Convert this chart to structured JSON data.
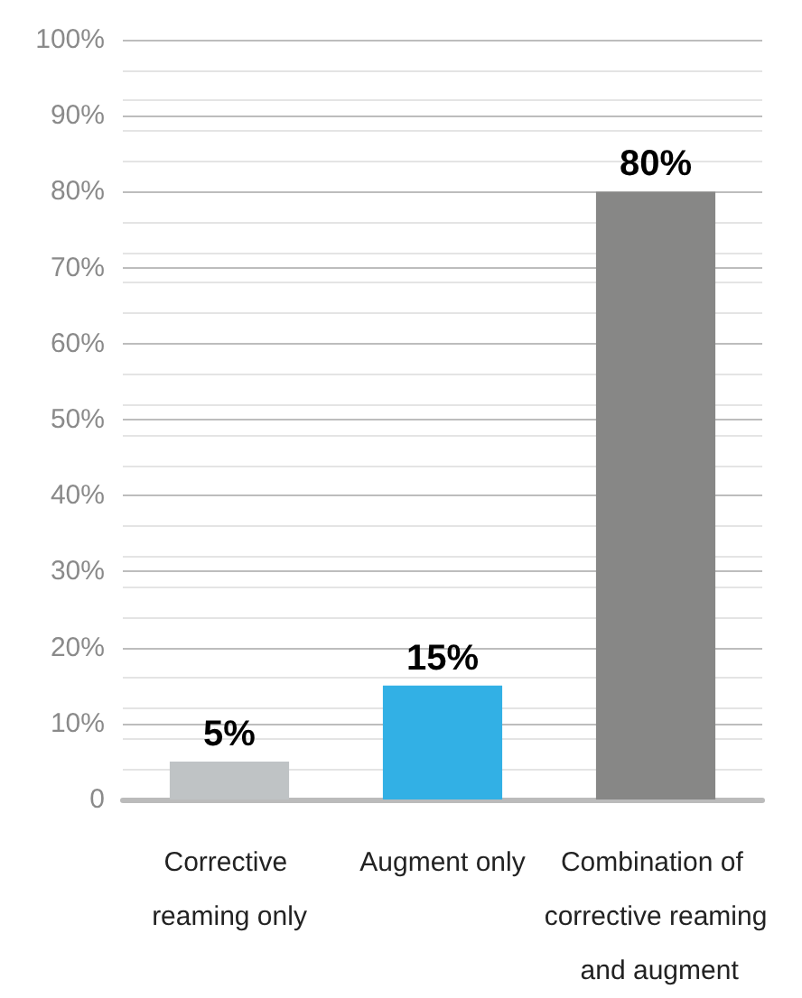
{
  "chart_data": {
    "type": "bar",
    "categories": [
      "Corrective reaming only",
      "Augment only",
      "Combination of corrective reaming and augment"
    ],
    "values": [
      5,
      15,
      80
    ],
    "colors": [
      "#bfc3c5",
      "#32b0e5",
      "#878786"
    ],
    "value_labels": [
      "5%",
      "15%",
      "80%"
    ],
    "ylim": [
      0,
      100
    ],
    "yticks": [
      {
        "value": 0,
        "label": "0"
      },
      {
        "value": 10,
        "label": "10%"
      },
      {
        "value": 20,
        "label": "20%"
      },
      {
        "value": 30,
        "label": "30%"
      },
      {
        "value": 40,
        "label": "40%"
      },
      {
        "value": 50,
        "label": "50%"
      },
      {
        "value": 60,
        "label": "60%"
      },
      {
        "value": 70,
        "label": "70%"
      },
      {
        "value": 80,
        "label": "80%"
      },
      {
        "value": 90,
        "label": "90%"
      },
      {
        "value": 100,
        "label": "100%"
      }
    ],
    "grid": true
  }
}
